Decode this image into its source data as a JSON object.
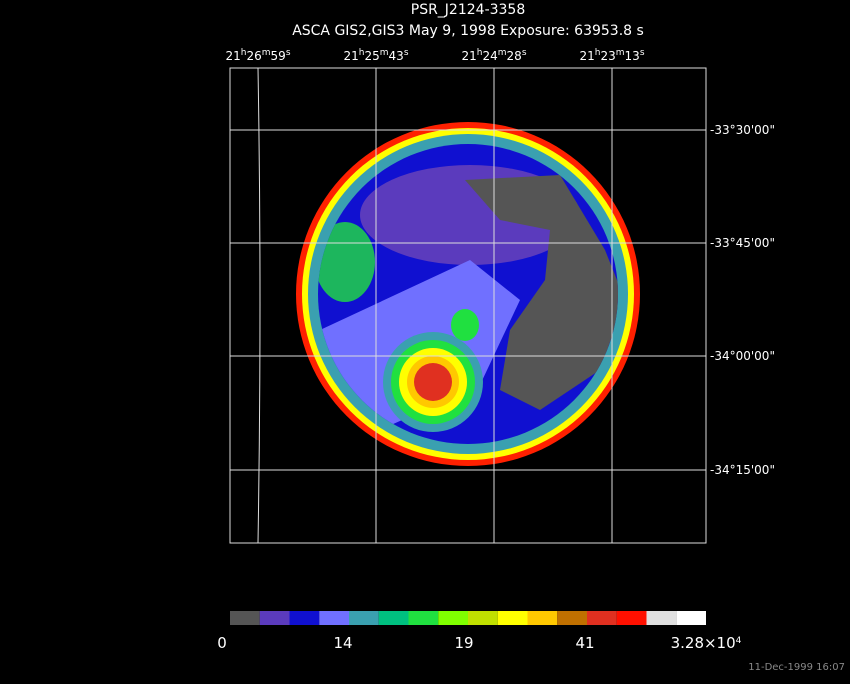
{
  "header": {
    "title": "PSR_J2124-3358",
    "subtitle": "ASCA GIS2,GIS3 May 9, 1998 Exposure: 63953.8 s"
  },
  "ra_labels": [
    [
      "21",
      "h",
      "26",
      "m",
      "59",
      "s"
    ],
    [
      "21",
      "h",
      "25",
      "m",
      "43",
      "s"
    ],
    [
      "21",
      "h",
      "24",
      "m",
      "28",
      "s"
    ],
    [
      "21",
      "h",
      "23",
      "m",
      "13",
      "s"
    ]
  ],
  "dec_labels": [
    "-33°30'00\"",
    "-33°45'00\"",
    "-34°00'00\"",
    "-34°15'00\""
  ],
  "colorbar": {
    "colors": [
      "#555555",
      "#5b3bbd",
      "#1010d0",
      "#7070ff",
      "#3aa0b0",
      "#00c080",
      "#20e040",
      "#80ff00",
      "#c0e000",
      "#ffff00",
      "#ffc800",
      "#c07000",
      "#e03020",
      "#ff1000",
      "#e0e0e0",
      "#ffffff"
    ],
    "labels": [
      "0",
      "14",
      "19",
      "41",
      [
        "3.28×10",
        "4"
      ]
    ]
  },
  "timestamp": "11-Dec-1999 16:07"
}
